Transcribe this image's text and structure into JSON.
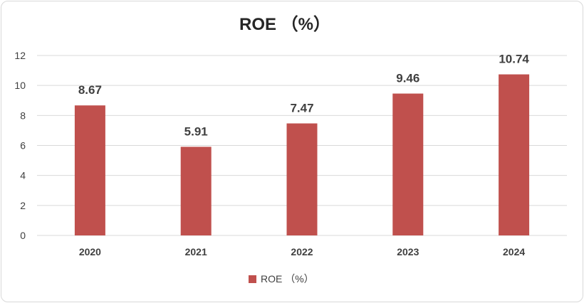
{
  "chart_data": {
    "type": "bar",
    "title": "ROE （%）",
    "categories": [
      "2020",
      "2021",
      "2022",
      "2023",
      "2024"
    ],
    "series": [
      {
        "name": "ROE （%）",
        "values": [
          8.67,
          5.91,
          7.47,
          9.46,
          10.74
        ]
      }
    ],
    "data_labels": [
      "8.67",
      "5.91",
      "7.47",
      "9.46",
      "10.74"
    ],
    "y_ticks": [
      "0",
      "2",
      "4",
      "6",
      "8",
      "10",
      "12"
    ],
    "ylim": [
      0,
      12
    ],
    "xlabel": "",
    "ylabel": "",
    "grid": true,
    "legend_position": "bottom",
    "colors": {
      "bar": "#c0504d",
      "grid": "#d9d9d9",
      "text": "#404040",
      "title": "#262626"
    }
  }
}
